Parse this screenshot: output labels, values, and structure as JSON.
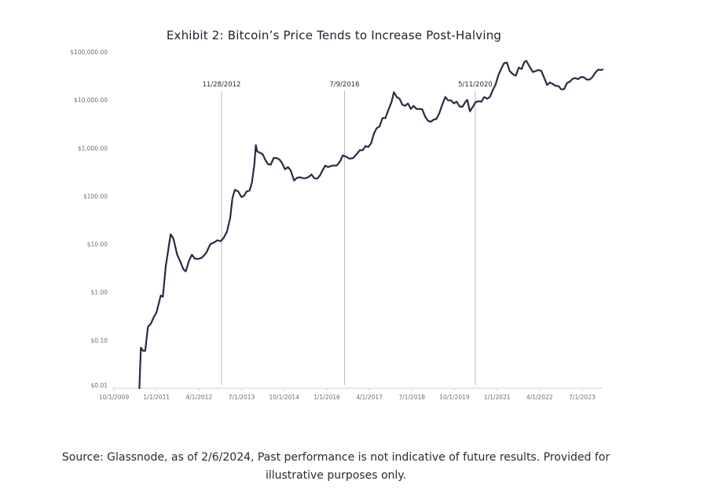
{
  "chart_data": {
    "type": "line",
    "title": "Exhibit 2: Bitcoin’s Price Tends to Increase Post-Halving",
    "xlabel": "",
    "ylabel": "",
    "y_scale": "log",
    "ylim": [
      0.01,
      100000
    ],
    "y_ticks": [
      {
        "value": 0.01,
        "label": "$0.01"
      },
      {
        "value": 0.1,
        "label": "$0.10"
      },
      {
        "value": 1,
        "label": "$1.00"
      },
      {
        "value": 10,
        "label": "$10.00"
      },
      {
        "value": 100,
        "label": "$100.00"
      },
      {
        "value": 1000,
        "label": "$1,000.00"
      },
      {
        "value": 10000,
        "label": "$10,000.00"
      },
      {
        "value": 100000,
        "label": "$100,000.00"
      }
    ],
    "xlim": [
      "2009-10-01",
      "2024-02-06"
    ],
    "x_ticks": [
      {
        "value": "2009-10-01",
        "label": "10/1/2009"
      },
      {
        "value": "2011-01-01",
        "label": "1/1/2011"
      },
      {
        "value": "2012-04-01",
        "label": "4/1/2012"
      },
      {
        "value": "2013-07-01",
        "label": "7/1/2013"
      },
      {
        "value": "2014-10-01",
        "label": "10/1/2014"
      },
      {
        "value": "2016-01-01",
        "label": "1/1/2016"
      },
      {
        "value": "2017-04-01",
        "label": "4/1/2017"
      },
      {
        "value": "2018-07-01",
        "label": "7/1/2018"
      },
      {
        "value": "2019-10-01",
        "label": "10/1/2019"
      },
      {
        "value": "2021-01-01",
        "label": "1/1/2021"
      },
      {
        "value": "2022-04-01",
        "label": "4/1/2022"
      },
      {
        "value": "2023-07-01",
        "label": "7/1/2023"
      }
    ],
    "annotations": [
      {
        "date": "2012-11-28",
        "label": "11/28/2012"
      },
      {
        "date": "2016-07-09",
        "label": "7/9/2016"
      },
      {
        "date": "2020-05-11",
        "label": "5/11/2020"
      }
    ],
    "grid": false,
    "legend": "none",
    "series": [
      {
        "color": "#2b2a45",
        "points": [
          [
            "2010-07-01",
            0.01
          ],
          [
            "2010-07-17",
            0.07
          ],
          [
            "2010-08-10",
            0.06
          ],
          [
            "2010-09-01",
            0.06
          ],
          [
            "2010-10-01",
            0.19
          ],
          [
            "2010-11-01",
            0.22
          ],
          [
            "2010-12-01",
            0.3
          ],
          [
            "2011-01-01",
            0.38
          ],
          [
            "2011-02-15",
            0.85
          ],
          [
            "2011-03-10",
            0.8
          ],
          [
            "2011-04-10",
            3.5
          ],
          [
            "2011-06-01",
            16
          ],
          [
            "2011-07-01",
            13
          ],
          [
            "2011-08-10",
            6
          ],
          [
            "2011-09-10",
            4.5
          ],
          [
            "2011-10-15",
            3
          ],
          [
            "2011-11-10",
            2.7
          ],
          [
            "2011-12-15",
            4.5
          ],
          [
            "2012-01-15",
            6
          ],
          [
            "2012-02-15",
            5
          ],
          [
            "2012-03-20",
            4.9
          ],
          [
            "2012-05-01",
            5.2
          ],
          [
            "2012-06-15",
            6.5
          ],
          [
            "2012-08-01",
            10
          ],
          [
            "2012-09-15",
            11
          ],
          [
            "2012-10-15",
            12
          ],
          [
            "2012-11-20",
            11.5
          ],
          [
            "2012-12-20",
            13.5
          ],
          [
            "2013-01-25",
            18
          ],
          [
            "2013-03-01",
            35
          ],
          [
            "2013-03-25",
            90
          ],
          [
            "2013-04-20",
            135
          ],
          [
            "2013-05-25",
            125
          ],
          [
            "2013-06-30",
            95
          ],
          [
            "2013-07-25",
            100
          ],
          [
            "2013-08-25",
            125
          ],
          [
            "2013-09-25",
            130
          ],
          [
            "2013-10-20",
            190
          ],
          [
            "2013-11-15",
            450
          ],
          [
            "2013-12-01",
            1150
          ],
          [
            "2013-12-15",
            850
          ],
          [
            "2014-01-10",
            800
          ],
          [
            "2014-02-10",
            750
          ],
          [
            "2014-03-10",
            580
          ],
          [
            "2014-04-10",
            460
          ],
          [
            "2014-05-10",
            450
          ],
          [
            "2014-06-10",
            620
          ],
          [
            "2014-07-10",
            620
          ],
          [
            "2014-08-10",
            580
          ],
          [
            "2014-09-10",
            480
          ],
          [
            "2014-10-10",
            360
          ],
          [
            "2014-11-10",
            400
          ],
          [
            "2014-12-10",
            340
          ],
          [
            "2015-01-15",
            210
          ],
          [
            "2015-02-15",
            240
          ],
          [
            "2015-03-20",
            245
          ],
          [
            "2015-04-20",
            235
          ],
          [
            "2015-05-20",
            235
          ],
          [
            "2015-06-20",
            250
          ],
          [
            "2015-07-20",
            280
          ],
          [
            "2015-08-20",
            235
          ],
          [
            "2015-09-20",
            230
          ],
          [
            "2015-10-20",
            270
          ],
          [
            "2015-11-15",
            340
          ],
          [
            "2015-12-15",
            430
          ],
          [
            "2016-01-15",
            400
          ],
          [
            "2016-03-01",
            430
          ],
          [
            "2016-04-15",
            430
          ],
          [
            "2016-05-20",
            520
          ],
          [
            "2016-06-20",
            700
          ],
          [
            "2016-07-25",
            660
          ],
          [
            "2016-09-01",
            600
          ],
          [
            "2016-10-10",
            620
          ],
          [
            "2016-11-15",
            740
          ],
          [
            "2016-12-20",
            900
          ],
          [
            "2017-01-20",
            900
          ],
          [
            "2017-02-20",
            1100
          ],
          [
            "2017-03-20",
            1050
          ],
          [
            "2017-04-20",
            1250
          ],
          [
            "2017-05-20",
            2000
          ],
          [
            "2017-06-20",
            2600
          ],
          [
            "2017-07-20",
            2800
          ],
          [
            "2017-08-20",
            4200
          ],
          [
            "2017-09-20",
            4200
          ],
          [
            "2017-10-20",
            6000
          ],
          [
            "2017-11-25",
            9000
          ],
          [
            "2017-12-20",
            14500
          ],
          [
            "2018-01-20",
            11500
          ],
          [
            "2018-02-20",
            10500
          ],
          [
            "2018-03-20",
            8000
          ],
          [
            "2018-04-20",
            7500
          ],
          [
            "2018-05-20",
            8500
          ],
          [
            "2018-06-20",
            6500
          ],
          [
            "2018-07-20",
            7500
          ],
          [
            "2018-08-20",
            6500
          ],
          [
            "2018-09-20",
            6500
          ],
          [
            "2018-10-20",
            6400
          ],
          [
            "2018-11-20",
            4500
          ],
          [
            "2018-12-20",
            3700
          ],
          [
            "2019-01-20",
            3500
          ],
          [
            "2019-02-20",
            3900
          ],
          [
            "2019-03-20",
            4000
          ],
          [
            "2019-04-20",
            5200
          ],
          [
            "2019-05-25",
            8200
          ],
          [
            "2019-06-25",
            11500
          ],
          [
            "2019-07-25",
            9800
          ],
          [
            "2019-08-25",
            9800
          ],
          [
            "2019-09-25",
            8500
          ],
          [
            "2019-10-25",
            9200
          ],
          [
            "2019-11-25",
            7300
          ],
          [
            "2019-12-25",
            7200
          ],
          [
            "2020-01-25",
            9000
          ],
          [
            "2020-02-15",
            10000
          ],
          [
            "2020-03-15",
            5800
          ],
          [
            "2020-04-15",
            7200
          ],
          [
            "2020-05-15",
            9000
          ],
          [
            "2020-06-15",
            9400
          ],
          [
            "2020-07-15",
            9200
          ],
          [
            "2020-08-15",
            11500
          ],
          [
            "2020-09-15",
            10600
          ],
          [
            "2020-10-15",
            11500
          ],
          [
            "2020-11-15",
            16000
          ],
          [
            "2020-12-15",
            21000
          ],
          [
            "2021-01-15",
            33000
          ],
          [
            "2021-02-15",
            45000
          ],
          [
            "2021-03-15",
            58000
          ],
          [
            "2021-04-15",
            60000
          ],
          [
            "2021-05-15",
            40000
          ],
          [
            "2021-06-20",
            34000
          ],
          [
            "2021-07-20",
            32000
          ],
          [
            "2021-08-20",
            47000
          ],
          [
            "2021-09-20",
            44000
          ],
          [
            "2021-10-20",
            62000
          ],
          [
            "2021-11-10",
            65000
          ],
          [
            "2021-12-20",
            47000
          ],
          [
            "2022-01-20",
            38000
          ],
          [
            "2022-02-20",
            40000
          ],
          [
            "2022-03-20",
            42000
          ],
          [
            "2022-04-20",
            40000
          ],
          [
            "2022-05-20",
            29000
          ],
          [
            "2022-06-20",
            20500
          ],
          [
            "2022-07-20",
            23000
          ],
          [
            "2022-08-20",
            21500
          ],
          [
            "2022-09-20",
            19500
          ],
          [
            "2022-10-20",
            19500
          ],
          [
            "2022-11-20",
            16500
          ],
          [
            "2022-12-20",
            16800
          ],
          [
            "2023-01-20",
            22500
          ],
          [
            "2023-02-20",
            24000
          ],
          [
            "2023-03-20",
            27500
          ],
          [
            "2023-04-20",
            28500
          ],
          [
            "2023-05-20",
            27000
          ],
          [
            "2023-06-20",
            30000
          ],
          [
            "2023-07-20",
            29500
          ],
          [
            "2023-08-20",
            26500
          ],
          [
            "2023-09-20",
            26500
          ],
          [
            "2023-10-20",
            30000
          ],
          [
            "2023-11-20",
            37000
          ],
          [
            "2023-12-20",
            42500
          ],
          [
            "2024-01-20",
            42000
          ],
          [
            "2024-02-06",
            43000
          ]
        ]
      }
    ]
  },
  "footer": {
    "source_line1": "Source: Glassnode, as of 2/6/2024, Past performance is not indicative of future results. Provided for",
    "source_line2": "illustrative purposes only."
  }
}
